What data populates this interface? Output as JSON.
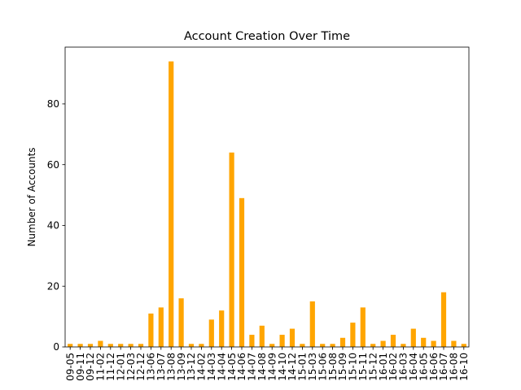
{
  "chart_data": {
    "type": "bar",
    "title": "Account Creation Over Time",
    "xlabel": "",
    "ylabel": "Number of Accounts",
    "ylim": [
      0,
      98.7
    ],
    "yticks": [
      0,
      20,
      40,
      60,
      80
    ],
    "grid": false,
    "legend": "none",
    "bar_color": "#FFA500",
    "categories": [
      "09-05",
      "09-11",
      "09-12",
      "11-02",
      "11-12",
      "12-01",
      "12-03",
      "12-12",
      "13-06",
      "13-07",
      "13-08",
      "13-09",
      "13-12",
      "14-02",
      "14-03",
      "14-04",
      "14-05",
      "14-06",
      "14-07",
      "14-08",
      "14-09",
      "14-10",
      "14-12",
      "15-01",
      "15-03",
      "15-06",
      "15-08",
      "15-09",
      "15-10",
      "15-11",
      "15-12",
      "16-01",
      "16-02",
      "16-03",
      "16-04",
      "16-05",
      "16-06",
      "16-07",
      "16-08",
      "16-10"
    ],
    "tick_labels": [
      "09-05",
      "09-11",
      "09-12",
      "11-02",
      "11-12",
      "12-01",
      "12-03",
      "12-12",
      "13-06",
      "13-07",
      "13-08",
      "13-09",
      "13-12",
      "14-02",
      "14-03",
      "14-04",
      "14-05",
      "14-06",
      "14-07",
      "14-08",
      "14-09",
      "14-10",
      "14-12",
      "15-01",
      "15-03",
      "15-06",
      "15-08",
      "15-09",
      "15-10",
      "15-11",
      "15-12",
      "16-01",
      "16-02",
      "16-03",
      "16-04",
      "16-05",
      "16-06",
      "16-07",
      "16-08",
      "16-10"
    ],
    "values": [
      1,
      1,
      1,
      2,
      1,
      1,
      1,
      1,
      11,
      13,
      94,
      16,
      1,
      1,
      9,
      12,
      64,
      49,
      4,
      7,
      1,
      4,
      6,
      1,
      15,
      1,
      1,
      3,
      8,
      13,
      1,
      2,
      4,
      1,
      6,
      3,
      2,
      18,
      2,
      1
    ]
  }
}
